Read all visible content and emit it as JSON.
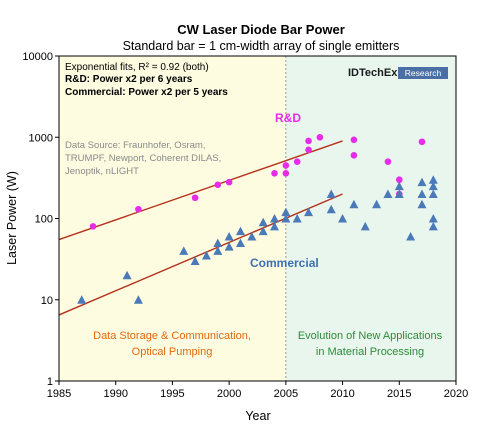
{
  "chart_data": {
    "type": "scatter",
    "title": "CW Laser Diode Bar Power",
    "subtitle": "Standard bar = 1 cm-width array of single emitters",
    "xlabel": "Year",
    "ylabel": "Laser Power (W)",
    "xlim": [
      1985,
      2020
    ],
    "ylim": [
      1,
      10000
    ],
    "yscale": "log",
    "x_ticks": [
      "1985",
      "1990",
      "1995",
      "2000",
      "2005",
      "2010",
      "2015",
      "2020"
    ],
    "y_ticks": [
      "1",
      "10",
      "100",
      "1000",
      "10000"
    ],
    "grid": false,
    "notes": {
      "fit": "Exponential fits, R² = 0.92 (both)",
      "rd": "R&D: Power x2 per 6 years",
      "commercial": "Commercial:  Power x2 per 5 years"
    },
    "source_lines": [
      "Data Source: Fraunhofer, Osram,",
      "TRUMPF, Newport, Coherent DILAS,",
      "Jenoptik, nLIGHT"
    ],
    "brand": {
      "name": "IDTechEx",
      "tag": "Research"
    },
    "regions": [
      {
        "x_range": [
          1985,
          2005
        ],
        "color": "#fdfbe0",
        "label_lines": [
          "Data Storage & Communication,",
          "Optical Pumping"
        ],
        "label_color": "#e06a10"
      },
      {
        "x_range": [
          2005,
          2020
        ],
        "color": "#e9f6ee",
        "label_lines": [
          "Evolution of New Applications",
          "in Material Processing"
        ],
        "label_color": "#2e8b3a"
      }
    ],
    "series": [
      {
        "name": "R&D",
        "marker": "circle",
        "color": "#e62ce8",
        "points": [
          [
            1988,
            80
          ],
          [
            1992,
            130
          ],
          [
            1997,
            180
          ],
          [
            1999,
            260
          ],
          [
            2000,
            280
          ],
          [
            2004,
            360
          ],
          [
            2005,
            450
          ],
          [
            2005,
            360
          ],
          [
            2006,
            500
          ],
          [
            2007,
            700
          ],
          [
            2007,
            900
          ],
          [
            2008,
            1000
          ],
          [
            2011,
            930
          ],
          [
            2011,
            600
          ],
          [
            2014,
            500
          ],
          [
            2015,
            300
          ],
          [
            2015,
            200
          ],
          [
            2017,
            880
          ]
        ],
        "fit": {
          "x": [
            1985,
            2010
          ],
          "y": [
            55,
            900
          ]
        }
      },
      {
        "name": "Commercial",
        "marker": "triangle",
        "color": "#4a7ab8",
        "points": [
          [
            1987,
            10
          ],
          [
            1991,
            20
          ],
          [
            1992,
            10
          ],
          [
            1996,
            40
          ],
          [
            1997,
            30
          ],
          [
            1998,
            35
          ],
          [
            1999,
            40
          ],
          [
            1999,
            50
          ],
          [
            2000,
            45
          ],
          [
            2000,
            60
          ],
          [
            2001,
            50
          ],
          [
            2001,
            70
          ],
          [
            2002,
            60
          ],
          [
            2003,
            70
          ],
          [
            2003,
            90
          ],
          [
            2004,
            80
          ],
          [
            2004,
            100
          ],
          [
            2005,
            100
          ],
          [
            2005,
            120
          ],
          [
            2006,
            100
          ],
          [
            2007,
            120
          ],
          [
            2009,
            200
          ],
          [
            2009,
            130
          ],
          [
            2010,
            100
          ],
          [
            2011,
            150
          ],
          [
            2012,
            80
          ],
          [
            2013,
            150
          ],
          [
            2014,
            200
          ],
          [
            2015,
            250
          ],
          [
            2015,
            200
          ],
          [
            2016,
            60
          ],
          [
            2017,
            280
          ],
          [
            2017,
            200
          ],
          [
            2017,
            150
          ],
          [
            2018,
            300
          ],
          [
            2018,
            250
          ],
          [
            2018,
            200
          ],
          [
            2018,
            100
          ],
          [
            2018,
            80
          ]
        ],
        "fit": {
          "x": [
            1985,
            2010
          ],
          "y": [
            6.5,
            200
          ]
        }
      }
    ]
  }
}
